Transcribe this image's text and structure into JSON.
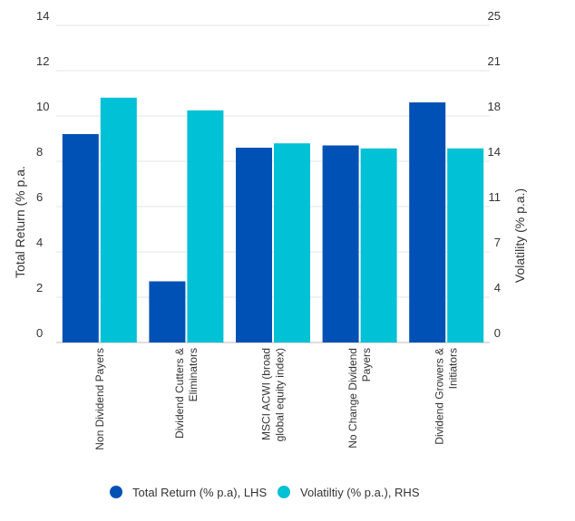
{
  "chart_data": {
    "type": "bar",
    "categories": [
      [
        "Non Dividend Payers"
      ],
      [
        "Dividend Cutters &",
        "Eliminators"
      ],
      [
        "MSCI ACWI (broad",
        "global equity index)"
      ],
      [
        "No Change Dividend",
        "Payers"
      ],
      [
        "Dividend Growers &",
        "Initiators"
      ]
    ],
    "series": [
      {
        "name": "Total Return (% p.a), LHS",
        "axis": "left",
        "color": "#0051B5",
        "values": [
          9.2,
          2.7,
          8.6,
          8.7,
          10.6
        ]
      },
      {
        "name": "Volatiltiy (% p.a.), RHS",
        "axis": "right",
        "color": "#00C1D5",
        "values": [
          19.3,
          18.3,
          15.7,
          15.3,
          15.3
        ]
      }
    ],
    "ylabel": "Total Return (% p.a.",
    "ylabel_right": "Volatility (% p.a.)",
    "ylim": [
      0,
      14
    ],
    "ylim_right": [
      0,
      25
    ],
    "yticks": [
      "0",
      "2",
      "4",
      "6",
      "8",
      "10",
      "12",
      "14"
    ],
    "yticks_right": [
      "0",
      "4",
      "7",
      "11",
      "14",
      "18",
      "21",
      "25"
    ],
    "grid": true,
    "legend": "bottom-center"
  }
}
